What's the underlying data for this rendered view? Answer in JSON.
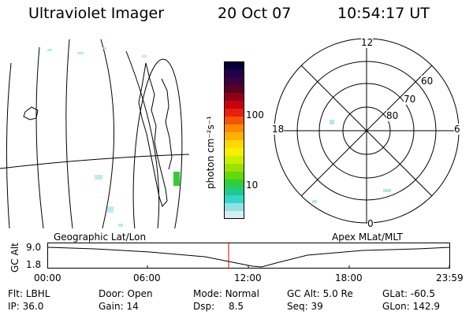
{
  "header": {
    "title": "Ultraviolet Imager",
    "date": "20 Oct 07",
    "time": "10:54:17 UT"
  },
  "colorbar": {
    "unit_label": "photon cm⁻²s⁻¹",
    "ticks": [
      "100",
      "10"
    ],
    "colors": [
      "#000033",
      "#22004a",
      "#3a0040",
      "#5a0025",
      "#900018",
      "#c80010",
      "#e8200c",
      "#f25508",
      "#ff8a00",
      "#ffb000",
      "#ffd800",
      "#f6ef00",
      "#c9ee00",
      "#9ce100",
      "#64d80a",
      "#2ecf3c",
      "#22c98c",
      "#35d6c8",
      "#8fe3e6",
      "#d6eef0"
    ]
  },
  "polar_plot": {
    "clock_labels": {
      "top": "12",
      "left": "18",
      "right": "6",
      "bottom": "0"
    },
    "lat_labels": [
      "60",
      "70",
      "80"
    ]
  },
  "timeline": {
    "left_label": "Geographic Lat/Lon",
    "right_label": "Apex MLat/MLT",
    "axis_title": "GC Alt",
    "y_ticks": [
      "9.0",
      "1.8"
    ],
    "x_ticks": [
      "00:00",
      "06:00",
      "12:00",
      "18:00",
      "23:59"
    ]
  },
  "info": {
    "row1": [
      {
        "label": "Flt:",
        "value": "LBHL"
      },
      {
        "label": "Door:",
        "value": "Open"
      },
      {
        "label": "Mode:",
        "value": "Normal"
      },
      {
        "label": "GC Alt:",
        "value": "5.0 Re"
      },
      {
        "label": "GLat:",
        "value": "-60.5"
      }
    ],
    "row2": [
      {
        "label": "IP:",
        "value": "36.0"
      },
      {
        "label": "Gain:",
        "value": "14"
      },
      {
        "label": "Dsp:",
        "value": "8.5"
      },
      {
        "label": "Seq:",
        "value": "39"
      },
      {
        "label": "GLon:",
        "value": "142.9"
      }
    ]
  }
}
